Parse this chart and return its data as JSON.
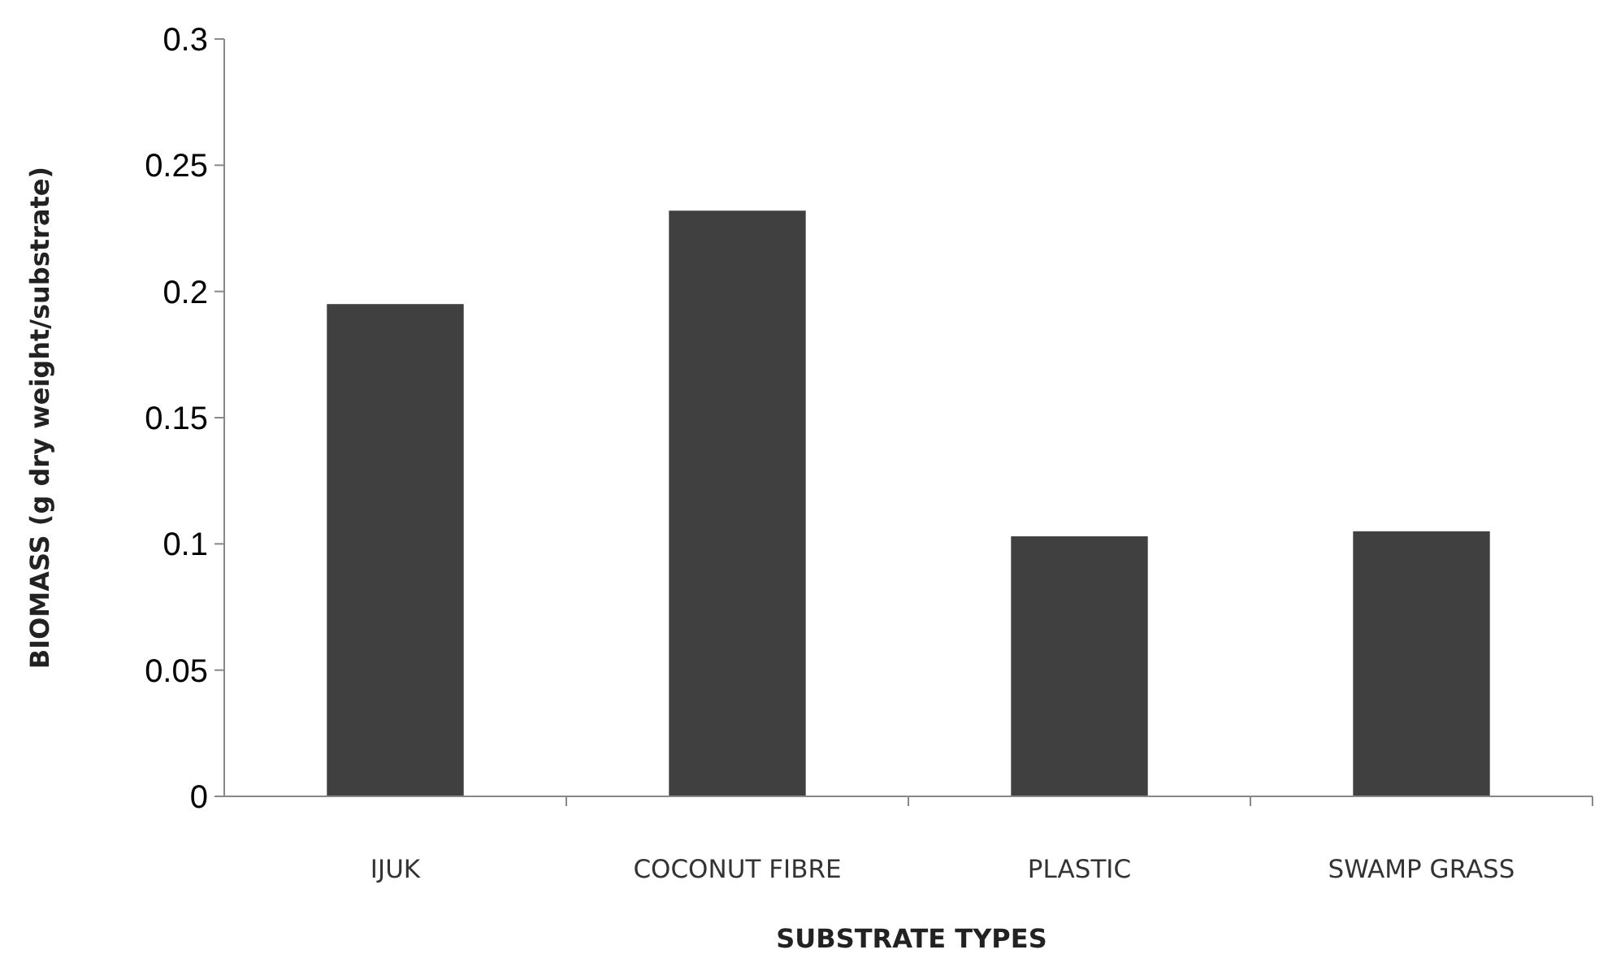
{
  "chart_data": {
    "type": "bar",
    "xlabel": "SUBSTRATE TYPES",
    "ylabel": "BIOMASS (g dry weight/substrate)",
    "categories": [
      "IJUK",
      "COCONUT FIBRE",
      "PLASTIC",
      "SWAMP GRASS"
    ],
    "values": [
      0.195,
      0.232,
      0.103,
      0.105
    ],
    "color": "#404040",
    "ylim": [
      0,
      0.3
    ],
    "yticks": [
      0,
      0.05,
      0.1,
      0.15,
      0.2,
      0.25,
      0.3
    ],
    "grid": false
  }
}
